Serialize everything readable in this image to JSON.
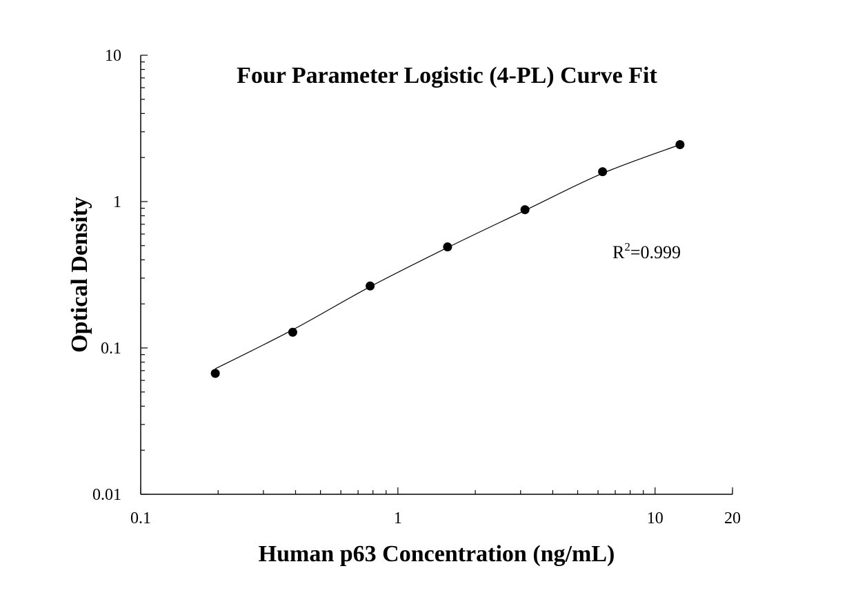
{
  "chart_data": {
    "type": "scatter",
    "title": "Four Parameter Logistic (4-PL) Curve Fit",
    "xlabel": "Human p63 Concentration (ng/mL)",
    "ylabel": "Optical Density",
    "x_scale": "log",
    "y_scale": "log",
    "xlim": [
      0.1,
      20
    ],
    "ylim": [
      0.01,
      10
    ],
    "x_ticks": [
      {
        "value": 0.1,
        "label": "0.1"
      },
      {
        "value": 1,
        "label": "1"
      },
      {
        "value": 10,
        "label": "10"
      },
      {
        "value": 20,
        "label": "20"
      }
    ],
    "y_ticks": [
      {
        "value": 0.01,
        "label": "0.01"
      },
      {
        "value": 0.1,
        "label": "0.1"
      },
      {
        "value": 1,
        "label": "1"
      },
      {
        "value": 10,
        "label": "10"
      }
    ],
    "grid": false,
    "series": [
      {
        "x": [
          0.195,
          0.39,
          0.78,
          1.56,
          3.12,
          6.25,
          12.5
        ],
        "y": [
          0.067,
          0.128,
          0.265,
          0.49,
          0.88,
          1.6,
          2.45
        ],
        "marker": "filled-circle",
        "color": "#000000"
      }
    ],
    "fit_curve": {
      "model": "4-PL",
      "x": [
        0.195,
        0.39,
        0.78,
        1.56,
        3.12,
        6.25,
        12.5
      ],
      "y": [
        0.072,
        0.133,
        0.262,
        0.485,
        0.87,
        1.56,
        2.45
      ],
      "color": "#000000"
    },
    "annotation": {
      "base": "R",
      "superscript": "2",
      "rest": "=0.999"
    }
  }
}
